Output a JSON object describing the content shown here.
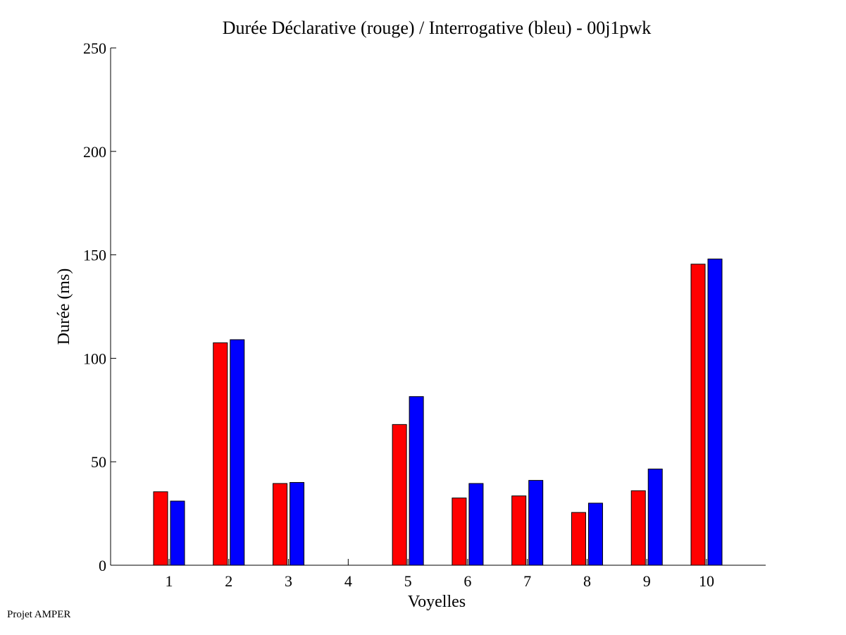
{
  "chart_data": {
    "type": "bar",
    "title": "Durée Déclarative (rouge) / Interrogative (bleu) - 00j1pwk",
    "xlabel": "Voyelles",
    "ylabel": "Durée (ms)",
    "ylim": [
      0,
      250
    ],
    "yticks": [
      "0",
      "50",
      "100",
      "150",
      "200",
      "250"
    ],
    "categories": [
      "1",
      "2",
      "3",
      "4",
      "5",
      "6",
      "7",
      "8",
      "9",
      "10"
    ],
    "series": [
      {
        "color": "#ff0000",
        "values": [
          35.5,
          107.5,
          39.5,
          0,
          68,
          32.5,
          33.5,
          25.5,
          36,
          145.5
        ]
      },
      {
        "color": "#0000ff",
        "values": [
          31,
          109,
          40,
          0,
          81.5,
          39.5,
          41,
          30,
          46.5,
          148
        ]
      }
    ],
    "grid": false
  },
  "footer": {
    "text": "Projet AMPER"
  }
}
